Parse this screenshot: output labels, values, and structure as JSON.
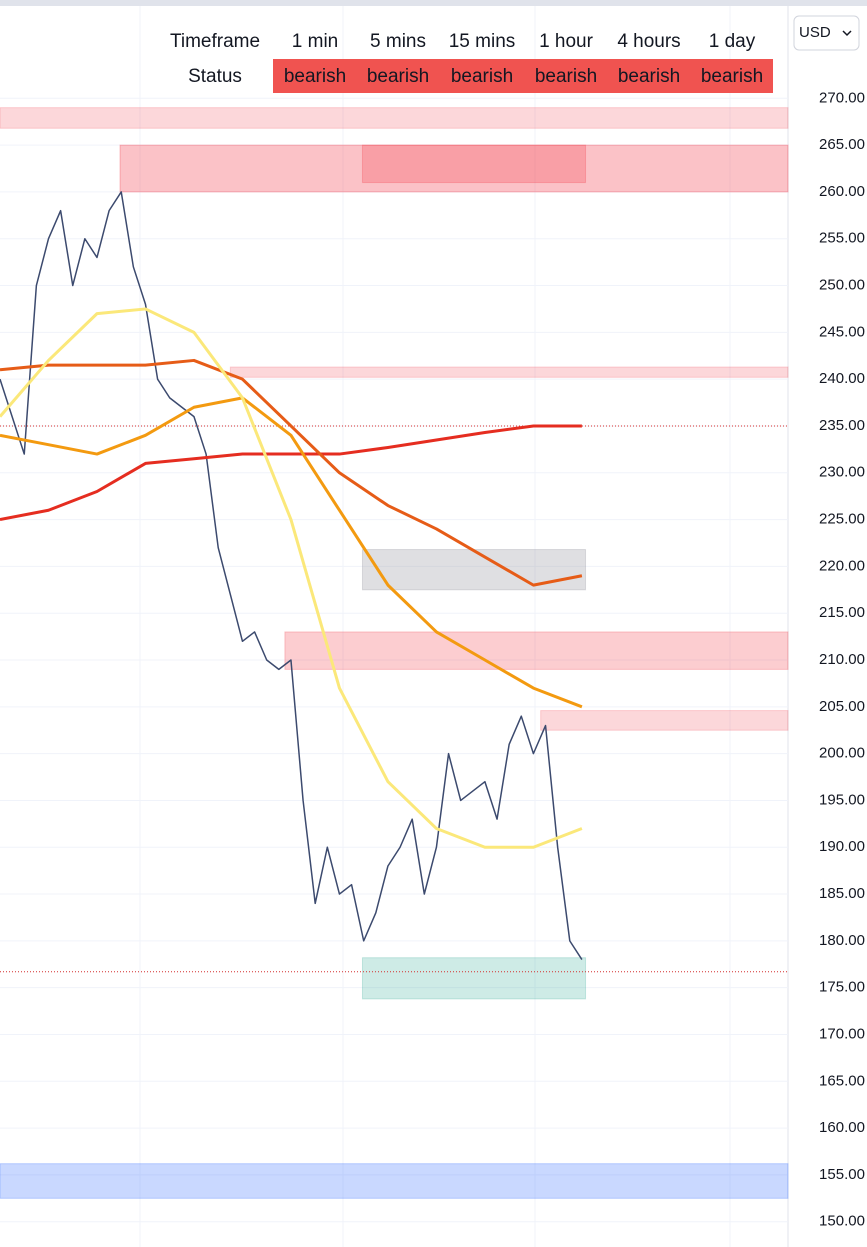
{
  "status_table": {
    "header": [
      "Timeframe",
      "1 min",
      "5 mins",
      "15 mins",
      "1 hour",
      "4 hours",
      "1 day"
    ],
    "row": [
      "Status",
      "bearish",
      "bearish",
      "bearish",
      "bearish",
      "bearish",
      "bearish"
    ],
    "status_color": "#f05350"
  },
  "currency_button": "USD",
  "chart_data": {
    "type": "line",
    "xlim": [
      0,
      65
    ],
    "ylim": [
      147.3,
      280.5
    ],
    "yticks": [
      {
        "value": 150,
        "label": "150.00"
      },
      {
        "value": 155,
        "label": "155.00"
      },
      {
        "value": 160,
        "label": "160.00"
      },
      {
        "value": 165,
        "label": "165.00"
      },
      {
        "value": 170,
        "label": "170.00"
      },
      {
        "value": 175,
        "label": "175.00"
      },
      {
        "value": 180,
        "label": "180.00"
      },
      {
        "value": 185,
        "label": "185.00"
      },
      {
        "value": 190,
        "label": "190.00"
      },
      {
        "value": 195,
        "label": "195.00"
      },
      {
        "value": 200,
        "label": "200.00"
      },
      {
        "value": 205,
        "label": "205.00"
      },
      {
        "value": 210,
        "label": "210.00"
      },
      {
        "value": 215,
        "label": "215.00"
      },
      {
        "value": 220,
        "label": "220.00"
      },
      {
        "value": 225,
        "label": "225.00"
      },
      {
        "value": 230,
        "label": "230.00"
      },
      {
        "value": 235,
        "label": "235.00"
      },
      {
        "value": 240,
        "label": "240.00"
      },
      {
        "value": 245,
        "label": "245.00"
      },
      {
        "value": 250,
        "label": "250.00"
      },
      {
        "value": 255,
        "label": "255.00"
      },
      {
        "value": 260,
        "label": "260.00"
      },
      {
        "value": 265,
        "label": "265.00"
      },
      {
        "value": 270,
        "label": "270.00"
      }
    ],
    "grid": true,
    "zones": [
      {
        "x": [
          0,
          65
        ],
        "y": [
          266.8,
          269
        ],
        "color": "rgba(242,54,69,0.2)"
      },
      {
        "x": [
          9.9,
          65
        ],
        "y": [
          260,
          265
        ],
        "color": "rgba(242,54,69,0.3)"
      },
      {
        "x": [
          29.9,
          48.3
        ],
        "y": [
          261,
          265
        ],
        "color": "rgba(242,54,69,0.25)"
      },
      {
        "x": [
          19,
          65
        ],
        "y": [
          240.2,
          241.3
        ],
        "color": "rgba(242,54,69,0.2)"
      },
      {
        "x": [
          29.9,
          48.3
        ],
        "y": [
          217.5,
          221.8
        ],
        "color": "rgba(150,150,160,0.3)"
      },
      {
        "x": [
          23.5,
          65
        ],
        "y": [
          209,
          213
        ],
        "color": "rgba(242,54,69,0.25)"
      },
      {
        "x": [
          44.6,
          65
        ],
        "y": [
          202.5,
          204.6
        ],
        "color": "rgba(242,54,69,0.2)"
      },
      {
        "x": [
          29.9,
          48.3
        ],
        "y": [
          173.8,
          178.2
        ],
        "color": "rgba(8,153,129,0.2)"
      },
      {
        "x": [
          0,
          65
        ],
        "y": [
          152.5,
          156.2
        ],
        "color": "rgba(41,98,255,0.25)"
      }
    ],
    "hlines": [
      {
        "value": 235,
        "color": "#d32f2f"
      },
      {
        "value": 176.7,
        "color": "#d32f2f"
      }
    ],
    "series": [
      {
        "color": "#3c4a6e",
        "width": 1.5,
        "values": [
          240,
          236,
          232,
          250,
          255,
          258,
          250,
          255,
          253,
          258,
          260,
          252,
          248,
          240,
          238,
          237,
          236,
          232,
          222,
          217,
          212,
          213,
          210,
          209,
          210,
          195,
          184,
          190,
          185,
          186,
          180,
          183,
          188,
          190,
          193,
          185,
          190,
          200,
          195,
          196,
          197,
          193,
          201,
          204,
          200,
          203,
          190,
          180,
          178
        ]
      },
      {
        "color": "#e52d20",
        "width": 3,
        "step": 4,
        "values": [
          225,
          226,
          228,
          231,
          231.5,
          232,
          232,
          232,
          232.7,
          233.5,
          234.3,
          235,
          235
        ]
      },
      {
        "color": "#e65c17",
        "width": 3,
        "step": 4,
        "values": [
          241,
          241.5,
          241.5,
          241.5,
          242,
          240,
          235,
          230,
          226.5,
          224,
          221,
          218,
          219
        ]
      },
      {
        "color": "#f39a10",
        "width": 3,
        "step": 4,
        "values": [
          234,
          233,
          232,
          234,
          237,
          238,
          234,
          226,
          218,
          213,
          210,
          207,
          205
        ]
      },
      {
        "color": "#fbe87a",
        "width": 3,
        "step": 4,
        "values": [
          236,
          242,
          247,
          247.5,
          245,
          238,
          225,
          207,
          197,
          192,
          190,
          190,
          192
        ]
      }
    ]
  }
}
